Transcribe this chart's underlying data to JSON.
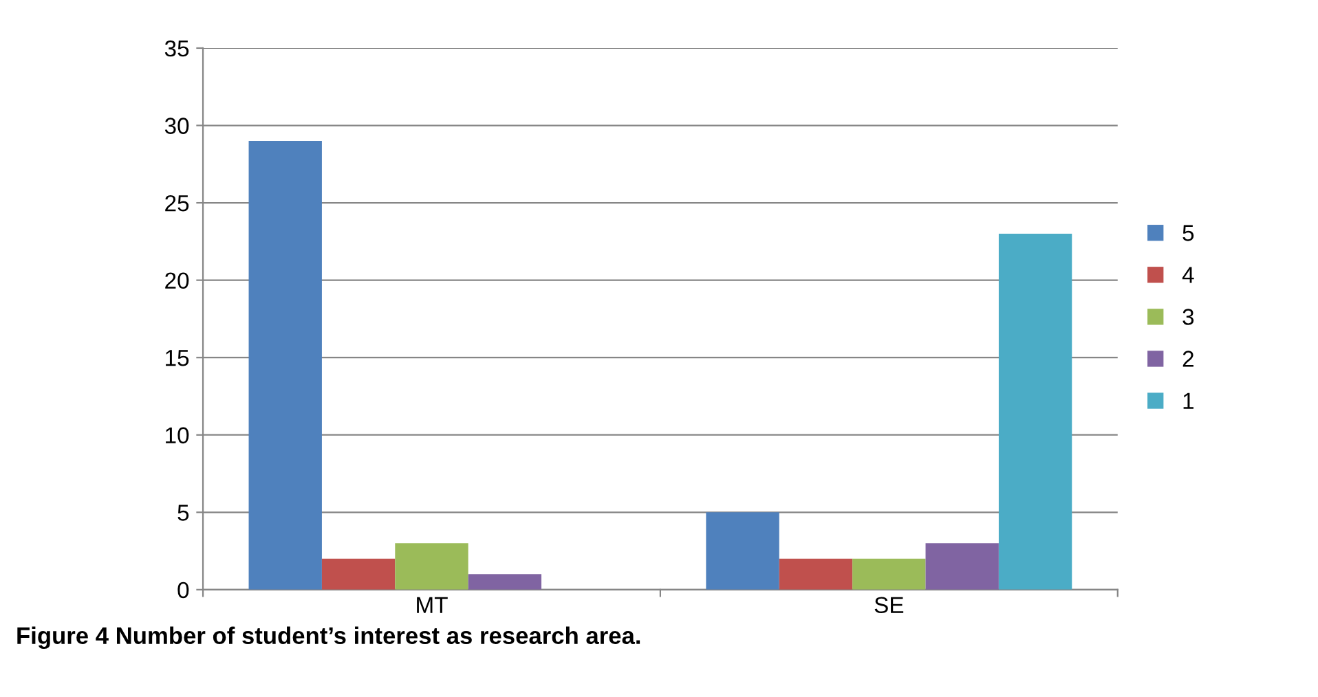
{
  "chart_data": {
    "type": "bar",
    "categories": [
      "MT",
      "SE"
    ],
    "series": [
      {
        "name": "5",
        "color": "#4f81bd",
        "values": [
          29,
          5
        ]
      },
      {
        "name": "4",
        "color": "#c0504d",
        "values": [
          2,
          2
        ]
      },
      {
        "name": "3",
        "color": "#9bbb59",
        "values": [
          3,
          2
        ]
      },
      {
        "name": "2",
        "color": "#8064a2",
        "values": [
          1,
          3
        ]
      },
      {
        "name": "1",
        "color": "#4bacc6",
        "values": [
          0,
          23
        ]
      }
    ],
    "ylim": [
      0,
      35
    ],
    "yticks": [
      0,
      5,
      10,
      15,
      20,
      25,
      30,
      35
    ],
    "grid": "y",
    "legend": "right",
    "annotations": [
      "Figure 4 Number of student’s interest as research area."
    ]
  }
}
